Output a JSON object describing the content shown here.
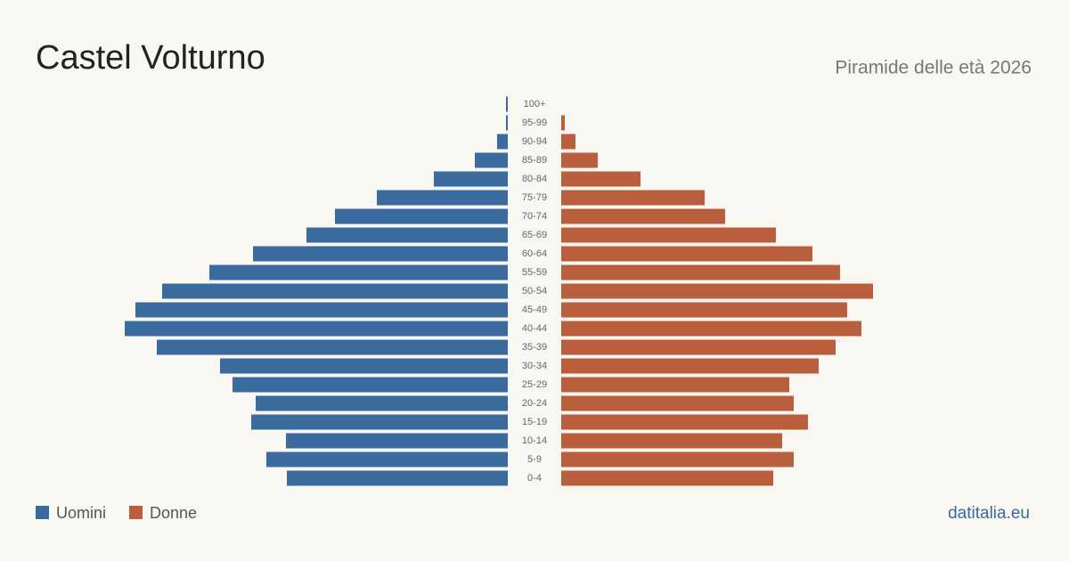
{
  "chart_data": {
    "type": "pyramid",
    "title": "Castel Volturno",
    "subtitle": "Piramide delle età 2026",
    "source": "datitalia.eu",
    "categories": [
      "0-4",
      "5-9",
      "10-14",
      "15-19",
      "20-24",
      "25-29",
      "30-34",
      "35-39",
      "40-44",
      "45-49",
      "50-54",
      "55-59",
      "60-64",
      "65-69",
      "70-74",
      "75-79",
      "80-84",
      "85-89",
      "90-94",
      "95-99",
      "100+"
    ],
    "series": [
      {
        "name": "Uomini",
        "color": "#3a6a9e",
        "values": [
          248,
          271,
          249,
          288,
          283,
          309,
          323,
          394,
          430,
          418,
          388,
          335,
          286,
          226,
          194,
          147,
          83,
          37,
          12,
          2,
          2
        ]
      },
      {
        "name": "Donne",
        "color": "#b95f3e",
        "values": [
          238,
          261,
          248,
          277,
          261,
          256,
          289,
          308,
          337,
          321,
          350,
          313,
          282,
          241,
          184,
          161,
          89,
          41,
          16,
          4,
          0
        ]
      }
    ],
    "xlim": [
      0,
      430
    ],
    "legend": "bottom-left"
  }
}
